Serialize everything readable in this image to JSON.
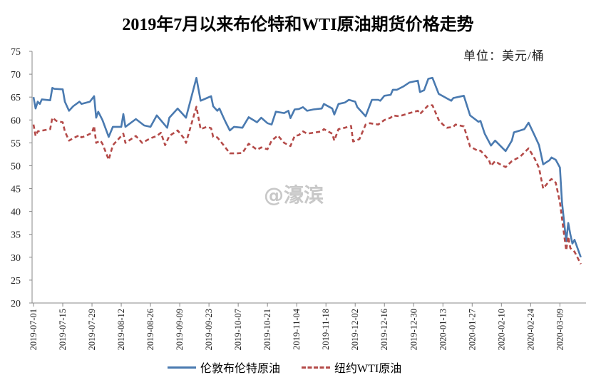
{
  "chart_data": {
    "type": "line",
    "title": "2019年7月以来布伦特和WTI原油期货价格走势",
    "unit_label": "单位：美元/桶",
    "watermark": "@濠滨",
    "x_unit": "days since 2019-07-01",
    "xlabel": "",
    "ylabel": "",
    "ylim": [
      20,
      75
    ],
    "yticks": [
      20,
      25,
      30,
      35,
      40,
      45,
      50,
      55,
      60,
      65,
      70,
      75
    ],
    "xticks": [
      {
        "day": 0,
        "label": "2019-07-01"
      },
      {
        "day": 14,
        "label": "2019-07-15"
      },
      {
        "day": 28,
        "label": "2019-07-29"
      },
      {
        "day": 42,
        "label": "2019-08-12"
      },
      {
        "day": 56,
        "label": "2019-08-26"
      },
      {
        "day": 70,
        "label": "2019-09-09"
      },
      {
        "day": 84,
        "label": "2019-09-23"
      },
      {
        "day": 98,
        "label": "2019-10-07"
      },
      {
        "day": 112,
        "label": "2019-10-21"
      },
      {
        "day": 126,
        "label": "2019-11-04"
      },
      {
        "day": 140,
        "label": "2019-11-18"
      },
      {
        "day": 154,
        "label": "2019-12-02"
      },
      {
        "day": 168,
        "label": "2019-12-16"
      },
      {
        "day": 182,
        "label": "2019-12-30"
      },
      {
        "day": 196,
        "label": "2020-01-13"
      },
      {
        "day": 210,
        "label": "2020-01-27"
      },
      {
        "day": 224,
        "label": "2020-02-10"
      },
      {
        "day": 238,
        "label": "2020-02-24"
      },
      {
        "day": 252,
        "label": "2020-03-09"
      }
    ],
    "grid": false,
    "legend_position": "bottom",
    "series": [
      {
        "name": "伦敦布伦特原油",
        "color": "#4a7ab0",
        "style": "solid",
        "x": [
          0,
          1,
          2,
          3,
          4,
          8,
          9,
          10,
          14,
          15,
          17,
          19,
          22,
          23,
          27,
          29,
          30,
          31,
          33,
          36,
          38,
          42,
          43,
          44,
          49,
          53,
          56,
          59,
          64,
          65,
          69,
          72,
          73,
          78,
          80,
          83,
          85,
          86,
          88,
          89,
          91,
          92,
          94,
          96,
          100,
          103,
          107,
          109,
          112,
          114,
          116,
          120,
          122,
          123,
          125,
          127,
          129,
          131,
          134,
          138,
          139,
          143,
          144,
          146,
          149,
          151,
          154,
          155,
          159,
          161,
          162,
          165,
          166,
          168,
          171,
          172,
          174,
          177,
          180,
          184,
          185,
          187,
          189,
          191,
          194,
          196,
          198,
          200,
          201,
          206,
          209,
          213,
          214,
          216,
          219,
          221,
          226,
          229,
          230,
          233,
          235,
          237,
          240,
          242,
          244,
          247,
          248,
          250,
          252,
          253,
          255,
          256,
          257,
          258,
          259,
          262
        ],
        "y": [
          65,
          62.5,
          64,
          63.5,
          64.5,
          64.3,
          67,
          66.8,
          66.7,
          64,
          62,
          63,
          64,
          63.5,
          64,
          65.2,
          60.5,
          61.8,
          60,
          56.3,
          58.5,
          58.5,
          61.3,
          58.5,
          60.2,
          58.8,
          58.5,
          61,
          58.3,
          60.5,
          62.5,
          61,
          60.5,
          69.2,
          64.2,
          64.8,
          65.2,
          63,
          62,
          62.5,
          60.5,
          59.5,
          57.7,
          58.5,
          58.3,
          60.6,
          59.5,
          60.5,
          59.3,
          59,
          61.8,
          61.5,
          62,
          60.4,
          62.3,
          62.4,
          62.8,
          62,
          62.3,
          62.5,
          63.5,
          62.5,
          61.2,
          63.5,
          63.8,
          64.4,
          64,
          62.8,
          60.8,
          63.2,
          64.4,
          64.4,
          64.2,
          65.3,
          65.5,
          66.6,
          66.6,
          67.3,
          68.2,
          68.6,
          66.1,
          66.5,
          69,
          69.2,
          65.7,
          65.2,
          64.7,
          64.2,
          64.8,
          65.3,
          61,
          59.6,
          59.8,
          57,
          54.4,
          55.5,
          53.2,
          55.5,
          57.3,
          57.7,
          58,
          59.4,
          56.5,
          54.5,
          50.3,
          51.2,
          51.8,
          51.3,
          49.6,
          42,
          33.5,
          37.5,
          35,
          33,
          33.8,
          30
        ]
      },
      {
        "name": "纽约WTI原油",
        "color": "#b44a48",
        "style": "dashed",
        "x": [
          0,
          1,
          2,
          8,
          9,
          11,
          14,
          15,
          17,
          19,
          22,
          23,
          25,
          28,
          29,
          30,
          32,
          33,
          36,
          38,
          40,
          43,
          44,
          49,
          52,
          56,
          59,
          61,
          63,
          65,
          69,
          72,
          73,
          78,
          80,
          83,
          85,
          86,
          88,
          91,
          94,
          97,
          100,
          103,
          107,
          109,
          112,
          114,
          117,
          120,
          123,
          125,
          127,
          129,
          131,
          134,
          138,
          139,
          143,
          144,
          146,
          149,
          152,
          153,
          156,
          159,
          161,
          165,
          168,
          171,
          172,
          175,
          180,
          184,
          185,
          189,
          191,
          194,
          196,
          198,
          201,
          202,
          206,
          209,
          213,
          214,
          218,
          219,
          221,
          223,
          226,
          229,
          233,
          237,
          240,
          242,
          244,
          247,
          248,
          250,
          252,
          254,
          255,
          256,
          257,
          259,
          262
        ],
        "y": [
          59,
          56.5,
          57.5,
          58,
          60.5,
          59.8,
          59.5,
          57.5,
          55.5,
          56,
          56.7,
          56.2,
          56.5,
          57.2,
          58.7,
          55,
          55.5,
          54.8,
          51.3,
          54.5,
          55.5,
          57,
          55,
          56.5,
          55,
          56,
          56.5,
          57.2,
          54.5,
          56.5,
          57.7,
          56,
          55,
          62.9,
          58,
          58.5,
          58.2,
          56.3,
          56.2,
          54.5,
          52.7,
          52.7,
          52.8,
          54.8,
          53.5,
          54,
          53.6,
          55.5,
          56.6,
          55,
          54.3,
          56.5,
          56.7,
          57.5,
          57,
          57.2,
          57.5,
          58,
          57,
          55.5,
          58,
          58.3,
          58.7,
          55.3,
          55.8,
          59,
          59.3,
          59,
          60,
          60.5,
          61,
          60.8,
          61.5,
          62,
          61.3,
          63.2,
          63.2,
          60,
          59,
          58.3,
          58.5,
          59,
          58.6,
          54.2,
          53.2,
          53.3,
          51.3,
          50,
          51,
          50.4,
          49.7,
          51,
          52,
          53.8,
          51.5,
          49.5,
          45,
          46.7,
          47.1,
          46.3,
          42,
          35,
          31.5,
          34.5,
          32,
          31.2,
          28.5
        ]
      }
    ]
  }
}
